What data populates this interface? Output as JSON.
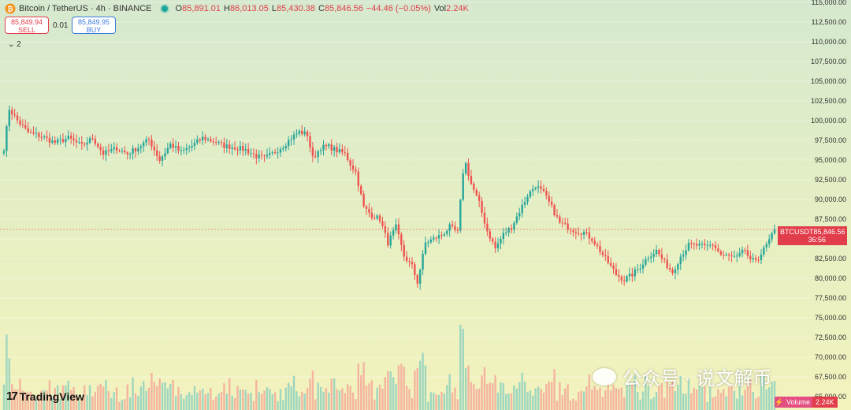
{
  "header": {
    "symbol": "Bitcoin / TetherUS · 4h · BINANCE",
    "open_label": "O",
    "open": "85,891.01",
    "high_label": "H",
    "high": "86,013.05",
    "low_label": "L",
    "low": "85,430.38",
    "close_label": "C",
    "close": "85,846.56",
    "change": "−44.46 (−0.05%)",
    "vol_label": "Vol",
    "vol": "2.24K"
  },
  "trade": {
    "sell_price": "85,849.94",
    "sell_label": "SELL",
    "spread": "0.01",
    "buy_price": "85,849.95",
    "buy_label": "BUY"
  },
  "indicator_toggle": {
    "icon": "chevron-down-icon",
    "count": "2"
  },
  "price_marker": {
    "ticker": "BTCUSDT",
    "price": "85,846.56",
    "countdown": "36:56"
  },
  "volume_marker": {
    "label": "Volume",
    "value": "2.24K"
  },
  "logo": {
    "mark": "17",
    "text": "TradingView"
  },
  "watermark": {
    "text": "公众号 · 说文解币"
  },
  "colors": {
    "up": "#26a69a",
    "down": "#ef5350",
    "up_volume": "#8fd1c0",
    "down_volume": "#f5a99a"
  },
  "chart_data": {
    "type": "candlestick",
    "title": "Bitcoin / TetherUS · 4h · BINANCE",
    "y_axis_side": "right",
    "ylim": [
      65000,
      115000
    ],
    "yticks": [
      65000,
      67500,
      70000,
      72500,
      75000,
      77500,
      80000,
      82500,
      85000,
      87500,
      90000,
      92500,
      95000,
      97500,
      100000,
      102500,
      105000,
      107500,
      110000,
      112500,
      115000
    ],
    "ytick_labels": [
      "65,000.00",
      "67,500.00",
      "70,000.00",
      "72,500.00",
      "75,000.00",
      "77,500.00",
      "80,000.00",
      "82,500.00",
      "85,000.00",
      "87,500.00",
      "90,000.00",
      "92,500.00",
      "95,000.00",
      "97,500.00",
      "100,000.00",
      "102,500.00",
      "105,000.00",
      "107,500.00",
      "110,000.00",
      "112,500.00",
      "115,000.00"
    ],
    "close_path": [
      [
        0,
        96500
      ],
      [
        2,
        101500
      ],
      [
        5,
        100000
      ],
      [
        9,
        98500
      ],
      [
        14,
        98000
      ],
      [
        19,
        97200
      ],
      [
        24,
        97800
      ],
      [
        29,
        96800
      ],
      [
        33,
        97800
      ],
      [
        37,
        95800
      ],
      [
        42,
        96500
      ],
      [
        46,
        95800
      ],
      [
        50,
        96600
      ],
      [
        54,
        97600
      ],
      [
        58,
        95000
      ],
      [
        62,
        97000
      ],
      [
        66,
        96000
      ],
      [
        70,
        96800
      ],
      [
        74,
        97800
      ],
      [
        78,
        97400
      ],
      [
        82,
        96800
      ],
      [
        86,
        96600
      ],
      [
        90,
        96300
      ],
      [
        94,
        95500
      ],
      [
        97,
        95200
      ],
      [
        100,
        95800
      ],
      [
        104,
        96800
      ],
      [
        107,
        97800
      ],
      [
        110,
        98600
      ],
      [
        113,
        98200
      ],
      [
        115,
        95200
      ],
      [
        118,
        96600
      ],
      [
        121,
        96700
      ],
      [
        124,
        96200
      ],
      [
        127,
        95800
      ],
      [
        129,
        94500
      ],
      [
        131,
        93500
      ],
      [
        134,
        89000
      ],
      [
        137,
        88000
      ],
      [
        140,
        87500
      ],
      [
        143,
        84500
      ],
      [
        146,
        86500
      ],
      [
        149,
        82800
      ],
      [
        152,
        81500
      ],
      [
        154,
        79500
      ],
      [
        157,
        84500
      ],
      [
        160,
        85000
      ],
      [
        163,
        85500
      ],
      [
        166,
        86500
      ],
      [
        169,
        85800
      ],
      [
        171,
        93500
      ],
      [
        172,
        94500
      ],
      [
        174,
        92000
      ],
      [
        177,
        89500
      ],
      [
        180,
        86000
      ],
      [
        183,
        83800
      ],
      [
        186,
        85600
      ],
      [
        189,
        86500
      ],
      [
        192,
        88500
      ],
      [
        195,
        90500
      ],
      [
        198,
        91800
      ],
      [
        201,
        90800
      ],
      [
        204,
        89000
      ],
      [
        207,
        87000
      ],
      [
        210,
        86500
      ],
      [
        213,
        86000
      ],
      [
        216,
        85800
      ],
      [
        219,
        85000
      ],
      [
        222,
        83500
      ],
      [
        225,
        82000
      ],
      [
        228,
        80500
      ],
      [
        231,
        79800
      ],
      [
        234,
        80500
      ],
      [
        237,
        81500
      ],
      [
        240,
        82800
      ],
      [
        243,
        83500
      ],
      [
        246,
        82000
      ],
      [
        249,
        80800
      ],
      [
        252,
        82800
      ],
      [
        255,
        84200
      ],
      [
        258,
        84200
      ],
      [
        261,
        84000
      ],
      [
        264,
        84300
      ],
      [
        267,
        83000
      ],
      [
        270,
        82800
      ],
      [
        273,
        82600
      ],
      [
        276,
        83600
      ],
      [
        278,
        82100
      ],
      [
        281,
        82600
      ],
      [
        284,
        84200
      ],
      [
        287,
        86000
      ]
    ]
  }
}
